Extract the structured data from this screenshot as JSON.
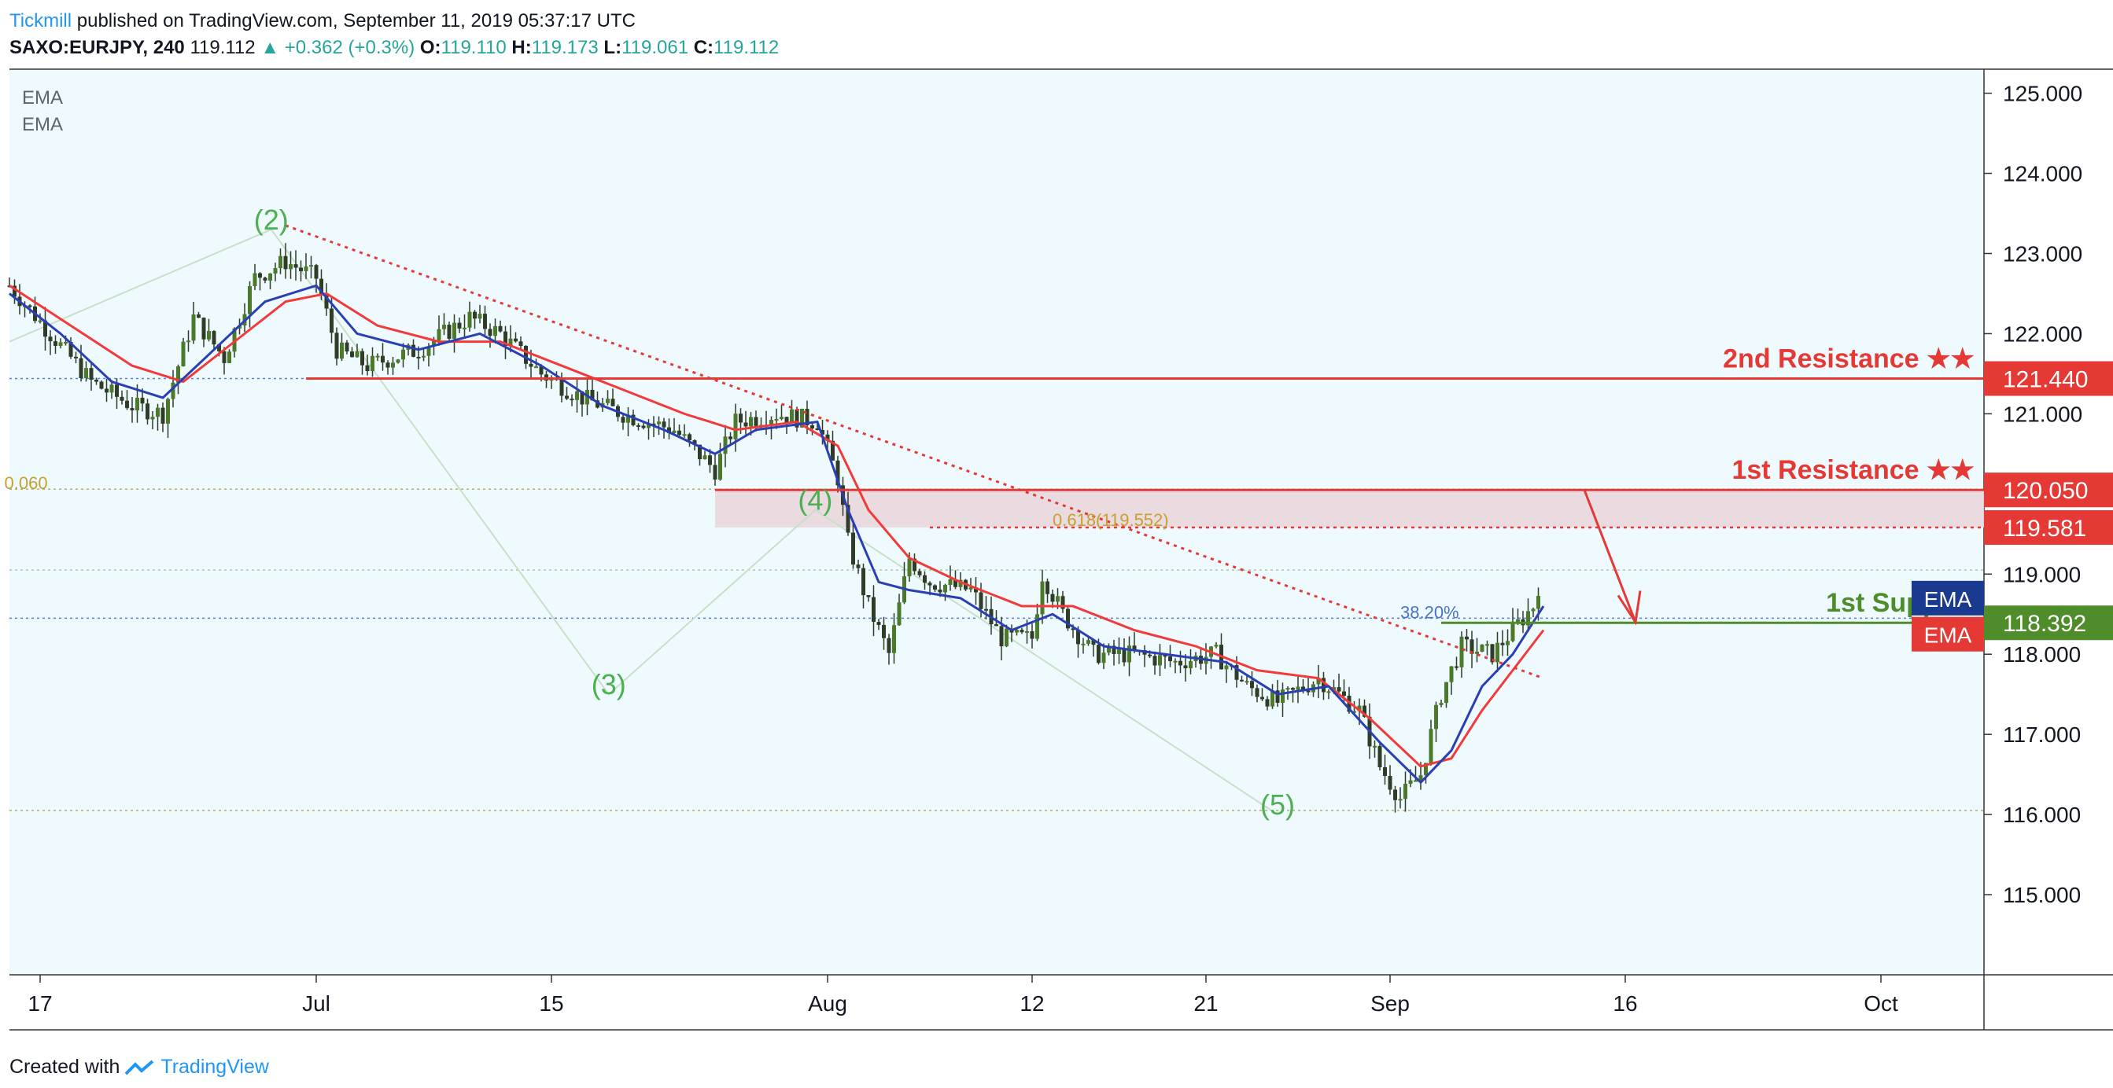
{
  "header": {
    "brand": "Tickmill",
    "published": "published on TradingView.com, September 11, 2019 05:37:17 UTC",
    "symbol": "SAXO:EURJPY, 240",
    "last": "119.112",
    "change": "+0.362 (+0.3%)",
    "open_label": "O:",
    "open": "119.110",
    "high_label": "H:",
    "high": "119.173",
    "low_label": "L:",
    "low": "119.061",
    "close_label": "C:",
    "close": "119.112"
  },
  "legend": [
    "EMA",
    "EMA"
  ],
  "footer": {
    "created": "Created with",
    "tv": "TradingView"
  },
  "colors": {
    "background": "#eefafd",
    "ema_fast": "#2a3fb3",
    "ema_slow": "#f23a3a",
    "resistance": "#e53935",
    "support": "#4e8d2a",
    "wave_label": "#4caf50",
    "candle_body": "#4a7a2a",
    "candle_wick": "#2f3d28"
  },
  "chart_data": {
    "type": "candlestick",
    "x_ticks": [
      "17",
      "Jul",
      "15",
      "Aug",
      "12",
      "21",
      "Sep",
      "16",
      "Oct"
    ],
    "x_tick_index": [
      0.3,
      3.0,
      5.3,
      8.0,
      10.0,
      11.7,
      13.5,
      15.8,
      18.3
    ],
    "ylim": [
      114.0,
      125.3
    ],
    "y_ticks": [
      115,
      116,
      117,
      118,
      119,
      120,
      121,
      122,
      123,
      124,
      125
    ],
    "y_tick_labels": [
      "115.000",
      "116.000",
      "117.000",
      "118.000",
      "119.000",
      "120.000",
      "121.000",
      "122.000",
      "123.000",
      "124.000",
      "125.000"
    ],
    "price_path": [
      [
        0.0,
        122.6
      ],
      [
        0.4,
        122.0
      ],
      [
        0.8,
        121.4
      ],
      [
        1.2,
        121.1
      ],
      [
        1.5,
        121.0
      ],
      [
        1.8,
        122.2
      ],
      [
        2.1,
        121.7
      ],
      [
        2.4,
        122.7
      ],
      [
        2.7,
        122.9
      ],
      [
        3.0,
        122.7
      ],
      [
        3.2,
        121.8
      ],
      [
        3.5,
        121.6
      ],
      [
        4.0,
        121.8
      ],
      [
        4.5,
        122.2
      ],
      [
        4.8,
        122.0
      ],
      [
        5.2,
        121.5
      ],
      [
        5.6,
        121.2
      ],
      [
        6.0,
        121.0
      ],
      [
        6.5,
        120.8
      ],
      [
        6.9,
        120.3
      ],
      [
        7.1,
        120.9
      ],
      [
        7.5,
        121.0
      ],
      [
        7.9,
        120.9
      ],
      [
        8.1,
        120.2
      ],
      [
        8.2,
        119.4
      ],
      [
        8.4,
        118.6
      ],
      [
        8.6,
        118.0
      ],
      [
        8.8,
        119.2
      ],
      [
        9.0,
        118.9
      ],
      [
        9.4,
        118.8
      ],
      [
        9.7,
        118.2
      ],
      [
        10.0,
        118.2
      ],
      [
        10.1,
        119.0
      ],
      [
        10.3,
        118.5
      ],
      [
        10.6,
        118.0
      ],
      [
        11.0,
        118.0
      ],
      [
        11.4,
        117.9
      ],
      [
        11.8,
        118.0
      ],
      [
        12.1,
        117.6
      ],
      [
        12.4,
        117.4
      ],
      [
        12.8,
        117.7
      ],
      [
        13.2,
        117.3
      ],
      [
        13.4,
        116.6
      ],
      [
        13.6,
        116.2
      ],
      [
        13.8,
        116.5
      ],
      [
        14.0,
        117.5
      ],
      [
        14.2,
        118.1
      ],
      [
        14.5,
        118.0
      ],
      [
        14.7,
        118.3
      ],
      [
        14.9,
        118.6
      ],
      [
        15.0,
        119.1
      ]
    ],
    "ema_fast": [
      [
        0.0,
        122.5
      ],
      [
        0.5,
        122.0
      ],
      [
        1.0,
        121.4
      ],
      [
        1.5,
        121.2
      ],
      [
        2.0,
        121.8
      ],
      [
        2.5,
        122.4
      ],
      [
        3.0,
        122.6
      ],
      [
        3.4,
        122.0
      ],
      [
        4.0,
        121.8
      ],
      [
        4.6,
        122.0
      ],
      [
        5.2,
        121.6
      ],
      [
        5.8,
        121.1
      ],
      [
        6.4,
        120.8
      ],
      [
        6.9,
        120.5
      ],
      [
        7.3,
        120.8
      ],
      [
        7.9,
        120.9
      ],
      [
        8.2,
        119.8
      ],
      [
        8.5,
        118.9
      ],
      [
        8.8,
        118.8
      ],
      [
        9.3,
        118.7
      ],
      [
        9.8,
        118.3
      ],
      [
        10.2,
        118.5
      ],
      [
        10.7,
        118.1
      ],
      [
        11.3,
        118.0
      ],
      [
        11.9,
        117.9
      ],
      [
        12.4,
        117.5
      ],
      [
        12.9,
        117.6
      ],
      [
        13.4,
        116.9
      ],
      [
        13.8,
        116.4
      ],
      [
        14.1,
        116.8
      ],
      [
        14.4,
        117.6
      ],
      [
        14.7,
        118.0
      ],
      [
        15.0,
        118.6
      ]
    ],
    "ema_slow": [
      [
        0.0,
        122.6
      ],
      [
        0.6,
        122.1
      ],
      [
        1.2,
        121.6
      ],
      [
        1.7,
        121.4
      ],
      [
        2.2,
        121.9
      ],
      [
        2.7,
        122.4
      ],
      [
        3.1,
        122.5
      ],
      [
        3.6,
        122.1
      ],
      [
        4.2,
        121.9
      ],
      [
        4.8,
        121.9
      ],
      [
        5.4,
        121.6
      ],
      [
        6.0,
        121.3
      ],
      [
        6.6,
        121.0
      ],
      [
        7.1,
        120.8
      ],
      [
        7.7,
        120.9
      ],
      [
        8.1,
        120.6
      ],
      [
        8.4,
        119.8
      ],
      [
        8.8,
        119.2
      ],
      [
        9.3,
        118.9
      ],
      [
        9.9,
        118.6
      ],
      [
        10.4,
        118.6
      ],
      [
        11.0,
        118.3
      ],
      [
        11.6,
        118.1
      ],
      [
        12.2,
        117.8
      ],
      [
        12.8,
        117.7
      ],
      [
        13.3,
        117.2
      ],
      [
        13.8,
        116.6
      ],
      [
        14.1,
        116.7
      ],
      [
        14.4,
        117.3
      ],
      [
        14.7,
        117.8
      ],
      [
        15.0,
        118.3
      ]
    ],
    "waves": [
      {
        "label": "(2)",
        "x": 2.56,
        "y": 123.3
      },
      {
        "label": "(3)",
        "x": 5.86,
        "y": 117.5
      },
      {
        "label": "(4)",
        "x": 7.88,
        "y": 119.8
      },
      {
        "label": "(5)",
        "x": 12.4,
        "y": 116.0
      }
    ],
    "wave_lines": [
      [
        [
          0.0,
          121.9
        ],
        [
          2.56,
          123.3
        ],
        [
          5.86,
          117.5
        ],
        [
          7.88,
          119.8
        ],
        [
          12.4,
          116.0
        ]
      ]
    ],
    "trendline": [
      [
        2.7,
        123.35
      ],
      [
        15.0,
        117.7
      ]
    ],
    "zone": {
      "from": 119.581,
      "to": 120.05,
      "x_start": 6.9
    },
    "levels": [
      {
        "name": "2nd Resistance ★★",
        "value": 121.44,
        "label": "121.440",
        "color": "#e53935",
        "x_start": 2.9
      },
      {
        "name": "1st Resistance ★★",
        "value": 120.05,
        "label": "120.050",
        "color": "#e53935",
        "x_start": 6.9
      },
      {
        "name": "0.618(119.552)",
        "value": 119.581,
        "label": "119.581",
        "color": "#e53935",
        "x_start": 9.0,
        "dotted": true
      },
      {
        "name": "1st Support",
        "value": 118.392,
        "label": "118.392",
        "color": "#4e8d2a",
        "x_start": 14.0
      }
    ],
    "fib_labels": [
      {
        "text": "0.618(119.552)",
        "x": 10.2,
        "y": 119.6
      },
      {
        "text": "38.20%",
        "x": 13.6,
        "y": 118.45
      },
      {
        "text": "0.060",
        "x": -0.05,
        "y": 120.06
      }
    ],
    "arrow": [
      [
        15.4,
        120.05
      ],
      [
        15.9,
        118.4
      ]
    ],
    "ema_tags": [
      {
        "label": "EMA",
        "value": 118.7,
        "color": "#1a3a8f"
      },
      {
        "label": "EMA",
        "value": 118.25,
        "color": "#e53935"
      }
    ]
  }
}
